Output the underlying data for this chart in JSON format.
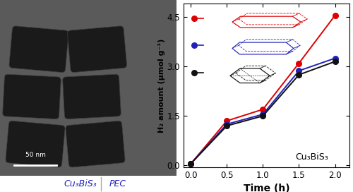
{
  "x": [
    0.0,
    0.5,
    1.0,
    1.5,
    2.0
  ],
  "red_y": [
    0.05,
    1.35,
    1.7,
    3.1,
    4.55
  ],
  "blue_y": [
    0.05,
    1.25,
    1.55,
    2.87,
    3.25
  ],
  "black_y": [
    0.05,
    1.2,
    1.5,
    2.75,
    3.15
  ],
  "xlabel": "Time (h)",
  "ylabel": "H₂ amount (μmol g⁻¹)",
  "annotation": "Cu₃BiS₃",
  "bottom_label_left": "Cu₃BiS₃",
  "bottom_label_right": "PEC",
  "xlim": [
    -0.1,
    2.2
  ],
  "ylim": [
    -0.05,
    4.9
  ],
  "xticks": [
    0.0,
    0.5,
    1.0,
    1.5,
    2.0
  ],
  "yticks": [
    0.0,
    1.5,
    3.0,
    4.5
  ],
  "red_color": "#dd0000",
  "blue_color": "#2222bb",
  "black_color": "#111111",
  "bg_color": "#ffffff",
  "tem_bg": "#888888"
}
